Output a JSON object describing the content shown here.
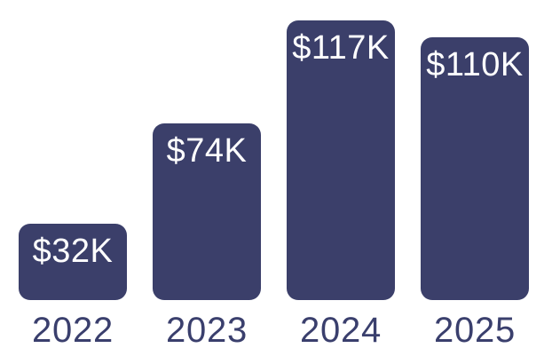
{
  "chart_data": {
    "type": "bar",
    "categories": [
      "2022",
      "2023",
      "2024",
      "2025"
    ],
    "values": [
      32,
      74,
      117,
      110
    ],
    "value_labels": [
      "$32K",
      "$74K",
      "$117K",
      "$110K"
    ],
    "value_label_position": "inside-top",
    "title": "",
    "xlabel": "",
    "ylabel": "",
    "ylim": [
      0,
      117
    ],
    "grid": false,
    "axes_visible": false,
    "legend": "none",
    "bar_color": "#3b3f6a",
    "value_label_color": "#ffffff",
    "category_label_color": "#3a3f6d",
    "background_color": "#ffffff"
  }
}
